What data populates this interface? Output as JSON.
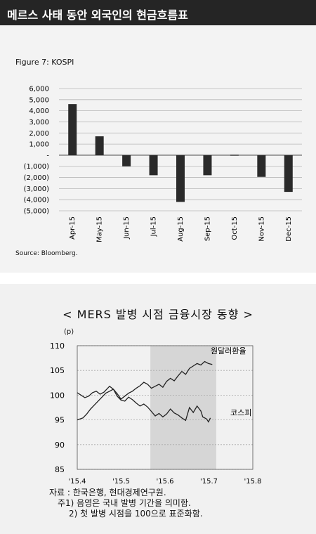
{
  "header": {
    "title": "메르스 사태 동안 외국인의 현금흐름표"
  },
  "figure1": {
    "label": "Figure 7: KOSPI",
    "source": "Source: Bloomberg."
  },
  "figure2": {
    "title": "< MERS 발병 시점 금융시장 동향 >",
    "ylabel": "(p)",
    "notes": [
      "자료 : 한국은행, 현대경제연구원.",
      "주1) 음영은 국내 발병 기간을 의미함.",
      "2) 첫 발병 시점을 100으로 표준화함."
    ]
  },
  "chart_data": [
    {
      "type": "bar",
      "title": "Figure 7: KOSPI",
      "categories": [
        "Apr-15",
        "May-15",
        "Jun-15",
        "Jul-15",
        "Aug-15",
        "Sep-15",
        "Oct-15",
        "Nov-15",
        "Dec-15"
      ],
      "values": [
        4600,
        1700,
        -1000,
        -1800,
        -4200,
        -1800,
        50,
        -1950,
        -3300
      ],
      "ylim": [
        -5000,
        6000
      ],
      "yticks": [
        6000,
        5000,
        4000,
        3000,
        2000,
        1000,
        0,
        -1000,
        -2000,
        -3000,
        -4000,
        -5000
      ],
      "ytick_labels": [
        "6,000",
        "5,000",
        "4,000",
        "3,000",
        "2,000",
        "1,000",
        "-",
        "(1,000)",
        "(2,000)",
        "(3,000)",
        "(4,000)",
        "(5,000)"
      ],
      "grid": true,
      "color": "#2a2a2a"
    },
    {
      "type": "line",
      "title": "< MERS 발병 시점 금융시장 동향 >",
      "ylabel": "(p)",
      "ylim": [
        85,
        110
      ],
      "yticks": [
        85,
        90,
        95,
        100,
        105,
        110
      ],
      "xticks": [
        "'15.4",
        "'15.5",
        "'15.6",
        "'15.7",
        "'15.8"
      ],
      "shaded_region": [
        "'15.5 (day 20)",
        "'15.7 (day 5)"
      ],
      "grid": true,
      "series": [
        {
          "name": "원달러환율",
          "color": "#222222",
          "points": [
            [
              0,
              95
            ],
            [
              3,
              95.4
            ],
            [
              5,
              96.2
            ],
            [
              7,
              97.2
            ],
            [
              9,
              98
            ],
            [
              11,
              98.8
            ],
            [
              13,
              99.6
            ],
            [
              15,
              100.4
            ],
            [
              17,
              100.8
            ],
            [
              19,
              101.2
            ],
            [
              21,
              100.3
            ],
            [
              23,
              99.2
            ],
            [
              25,
              99.8
            ],
            [
              27,
              100.4
            ],
            [
              29,
              100.8
            ],
            [
              31,
              101.4
            ],
            [
              33,
              101.9
            ],
            [
              35,
              102.6
            ],
            [
              37,
              102.2
            ],
            [
              39,
              101.4
            ],
            [
              41,
              101.8
            ],
            [
              43,
              102.2
            ],
            [
              45,
              101.6
            ],
            [
              47,
              102.8
            ],
            [
              49,
              103.4
            ],
            [
              51,
              102.9
            ],
            [
              53,
              103.9
            ],
            [
              55,
              104.8
            ],
            [
              57,
              104.2
            ],
            [
              59,
              105.4
            ],
            [
              61,
              105.9
            ],
            [
              63,
              106.4
            ],
            [
              65,
              106.1
            ],
            [
              67,
              106.8
            ],
            [
              69,
              106.4
            ],
            [
              71,
              106.2
            ]
          ]
        },
        {
          "name": "코스피",
          "color": "#222222",
          "points": [
            [
              0,
              100.5
            ],
            [
              2,
              100
            ],
            [
              4,
              99.5
            ],
            [
              6,
              99.8
            ],
            [
              8,
              100.5
            ],
            [
              10,
              100.8
            ],
            [
              12,
              100.2
            ],
            [
              14,
              100.6
            ],
            [
              16,
              101.4
            ],
            [
              17,
              101.8
            ],
            [
              19,
              101.2
            ],
            [
              21,
              99.8
            ],
            [
              23,
              99
            ],
            [
              25,
              98.8
            ],
            [
              27,
              99.6
            ],
            [
              29,
              99.1
            ],
            [
              31,
              98.4
            ],
            [
              33,
              97.8
            ],
            [
              35,
              98.2
            ],
            [
              37,
              97.6
            ],
            [
              39,
              96.7
            ],
            [
              41,
              95.8
            ],
            [
              43,
              96.3
            ],
            [
              45,
              95.6
            ],
            [
              47,
              96.2
            ],
            [
              49,
              97.2
            ],
            [
              51,
              96.4
            ],
            [
              53,
              96
            ],
            [
              55,
              95.4
            ],
            [
              57,
              94.9
            ],
            [
              59,
              97.5
            ],
            [
              61,
              96.5
            ],
            [
              63,
              97.8
            ],
            [
              65,
              96.8
            ],
            [
              66,
              95.6
            ],
            [
              68,
              95.2
            ],
            [
              69,
              94.6
            ],
            [
              70,
              95.4
            ]
          ]
        }
      ]
    }
  ]
}
